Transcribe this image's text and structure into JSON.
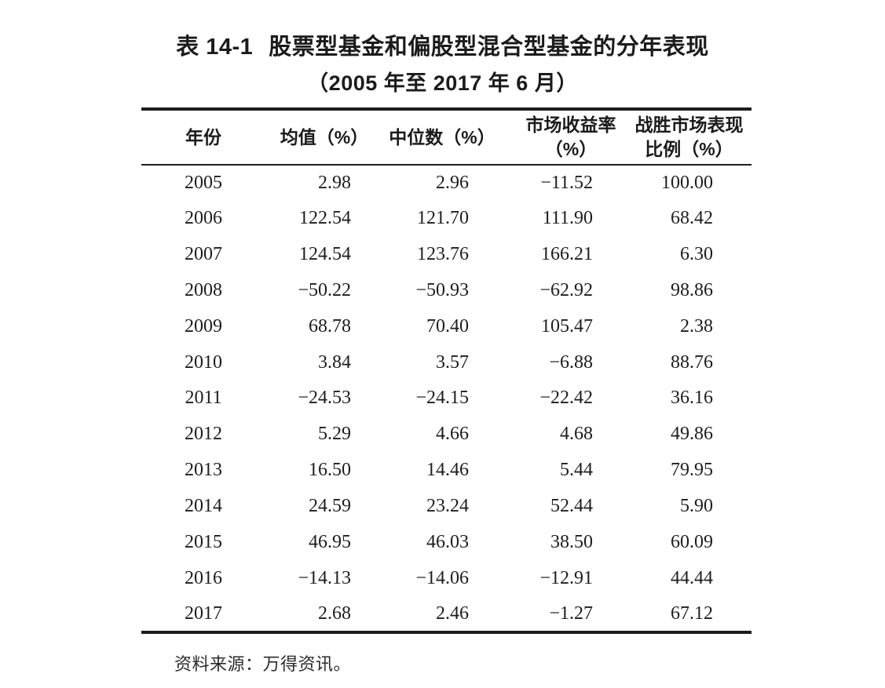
{
  "caption": {
    "label": "表 14-1",
    "title": "股票型基金和偏股型混合型基金的分年表现",
    "subtitle": "（2005 年至 2017 年 6 月）",
    "source_note": "资料来源：万得资讯。"
  },
  "table": {
    "headers": [
      [
        "年份"
      ],
      [
        "均值（%）"
      ],
      [
        "中位数（%）"
      ],
      [
        "市场收益率",
        "（%）"
      ],
      [
        "战胜市场表现",
        "比例（%）"
      ]
    ],
    "rows": [
      [
        "2005",
        "2.98",
        "2.96",
        "−11.52",
        "100.00"
      ],
      [
        "2006",
        "122.54",
        "121.70",
        "111.90",
        "68.42"
      ],
      [
        "2007",
        "124.54",
        "123.76",
        "166.21",
        "6.30"
      ],
      [
        "2008",
        "−50.22",
        "−50.93",
        "−62.92",
        "98.86"
      ],
      [
        "2009",
        "68.78",
        "70.40",
        "105.47",
        "2.38"
      ],
      [
        "2010",
        "3.84",
        "3.57",
        "−6.88",
        "88.76"
      ],
      [
        "2011",
        "−24.53",
        "−24.15",
        "−22.42",
        "36.16"
      ],
      [
        "2012",
        "5.29",
        "4.66",
        "4.68",
        "49.86"
      ],
      [
        "2013",
        "16.50",
        "14.46",
        "5.44",
        "79.95"
      ],
      [
        "2014",
        "24.59",
        "23.24",
        "52.44",
        "5.90"
      ],
      [
        "2015",
        "46.95",
        "46.03",
        "38.50",
        "60.09"
      ],
      [
        "2016",
        "−14.13",
        "−14.06",
        "−12.91",
        "44.44"
      ],
      [
        "2017",
        "2.68",
        "2.46",
        "−1.27",
        "67.12"
      ]
    ]
  },
  "chart_data": {
    "type": "table",
    "title": "表 14-1 股票型基金和偏股型混合型基金的分年表现（2005 年至 2017 年 6 月）",
    "columns": [
      "年份",
      "均值（%）",
      "中位数（%）",
      "市场收益率（%）",
      "战胜市场表现比例（%）"
    ],
    "years": [
      2005,
      2006,
      2007,
      2008,
      2009,
      2010,
      2011,
      2012,
      2013,
      2014,
      2015,
      2016,
      2017
    ],
    "mean_pct": [
      2.98,
      122.54,
      124.54,
      -50.22,
      68.78,
      3.84,
      -24.53,
      5.29,
      16.5,
      24.59,
      46.95,
      -14.13,
      2.68
    ],
    "median_pct": [
      2.96,
      121.7,
      123.76,
      -50.93,
      70.4,
      3.57,
      -24.15,
      4.66,
      14.46,
      23.24,
      46.03,
      -14.06,
      2.46
    ],
    "market_return_pct": [
      -11.52,
      111.9,
      166.21,
      -62.92,
      105.47,
      -6.88,
      -22.42,
      4.68,
      5.44,
      52.44,
      38.5,
      -12.91,
      -1.27
    ],
    "beat_market_ratio_pct": [
      100.0,
      68.42,
      6.3,
      98.86,
      2.38,
      88.76,
      36.16,
      49.86,
      79.95,
      5.9,
      60.09,
      44.44,
      67.12
    ],
    "source": "资料来源：万得资讯。"
  }
}
